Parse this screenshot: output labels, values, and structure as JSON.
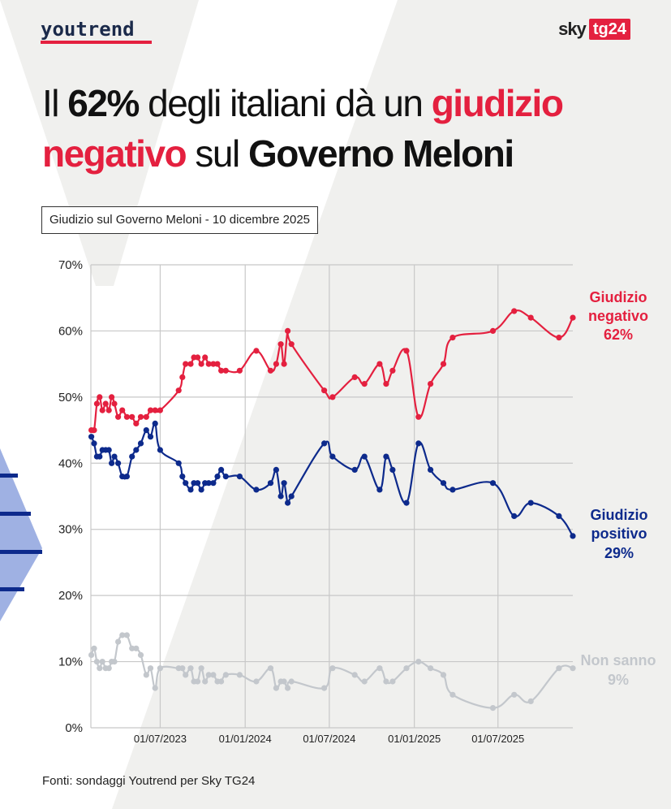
{
  "branding": {
    "left_logo": "youtrend",
    "right_logo_sky": "sky",
    "right_logo_tg": "tg24"
  },
  "headline": {
    "part1": "Il ",
    "part2": "62%",
    "part3": " degli italiani dà un ",
    "part4": "giudizio",
    "part5": "negativo",
    "part6": " sul ",
    "part7": "Governo Meloni"
  },
  "subtitle": "Giudizio sul Governo Meloni - 10 dicembre 2025",
  "source": "Fonti: sondaggi Youtrend per Sky TG24",
  "colors": {
    "negative": "#e4203f",
    "positive": "#0d2a8c",
    "dont_know": "#c3c7cc",
    "background_shape": "#f0f0ee",
    "decor_blue": "#9fb1e3"
  },
  "chart_data": {
    "type": "line",
    "title": "Giudizio sul Governo Meloni - 10 dicembre 2025",
    "xlabel": "",
    "ylabel": "",
    "x_ticks": [
      "01/07/2023",
      "01/01/2024",
      "01/07/2024",
      "01/01/2025",
      "01/07/2025"
    ],
    "y_ticks": [
      "0%",
      "10%",
      "20%",
      "30%",
      "40%",
      "50%",
      "60%",
      "70%"
    ],
    "ylim": [
      0,
      70
    ],
    "xlim": [
      "2023-02-01",
      "2025-12-10"
    ],
    "grid": true,
    "series": [
      {
        "name": "Giudizio negativo",
        "end_label_line1": "Giudizio",
        "end_label_line2": "negativo",
        "end_value_label": "62%",
        "color": "#e4203f",
        "points": [
          [
            "2023-02-02",
            45
          ],
          [
            "2023-02-08",
            45
          ],
          [
            "2023-02-14",
            49
          ],
          [
            "2023-02-20",
            50
          ],
          [
            "2023-02-26",
            48
          ],
          [
            "2023-03-05",
            49
          ],
          [
            "2023-03-12",
            48
          ],
          [
            "2023-03-18",
            50
          ],
          [
            "2023-03-24",
            49
          ],
          [
            "2023-04-01",
            47
          ],
          [
            "2023-04-10",
            48
          ],
          [
            "2023-04-20",
            47
          ],
          [
            "2023-05-01",
            47
          ],
          [
            "2023-05-10",
            46
          ],
          [
            "2023-05-20",
            47
          ],
          [
            "2023-06-01",
            47
          ],
          [
            "2023-06-10",
            48
          ],
          [
            "2023-06-20",
            48
          ],
          [
            "2023-07-01",
            48
          ],
          [
            "2023-08-10",
            51
          ],
          [
            "2023-08-18",
            53
          ],
          [
            "2023-08-25",
            55
          ],
          [
            "2023-09-05",
            55
          ],
          [
            "2023-09-12",
            56
          ],
          [
            "2023-09-20",
            56
          ],
          [
            "2023-09-28",
            55
          ],
          [
            "2023-10-06",
            56
          ],
          [
            "2023-10-14",
            55
          ],
          [
            "2023-10-24",
            55
          ],
          [
            "2023-11-02",
            55
          ],
          [
            "2023-11-10",
            54
          ],
          [
            "2023-11-20",
            54
          ],
          [
            "2023-12-20",
            54
          ],
          [
            "2024-01-25",
            57
          ],
          [
            "2024-02-25",
            54
          ],
          [
            "2024-03-08",
            55
          ],
          [
            "2024-03-18",
            58
          ],
          [
            "2024-03-25",
            55
          ],
          [
            "2024-04-02",
            60
          ],
          [
            "2024-04-10",
            58
          ],
          [
            "2024-06-20",
            51
          ],
          [
            "2024-07-08",
            50
          ],
          [
            "2024-08-25",
            53
          ],
          [
            "2024-09-15",
            52
          ],
          [
            "2024-10-18",
            55
          ],
          [
            "2024-11-01",
            52
          ],
          [
            "2024-11-15",
            54
          ],
          [
            "2024-12-15",
            57
          ],
          [
            "2025-01-10",
            47
          ],
          [
            "2025-02-05",
            52
          ],
          [
            "2025-03-05",
            55
          ],
          [
            "2025-03-25",
            59
          ],
          [
            "2025-06-20",
            60
          ],
          [
            "2025-08-05",
            63
          ],
          [
            "2025-09-10",
            62
          ],
          [
            "2025-11-10",
            59
          ],
          [
            "2025-12-10",
            62
          ]
        ]
      },
      {
        "name": "Giudizio positivo",
        "end_label_line1": "Giudizio",
        "end_label_line2": "positivo",
        "end_value_label": "29%",
        "color": "#0d2a8c",
        "points": [
          [
            "2023-02-02",
            44
          ],
          [
            "2023-02-08",
            43
          ],
          [
            "2023-02-14",
            41
          ],
          [
            "2023-02-20",
            41
          ],
          [
            "2023-02-26",
            42
          ],
          [
            "2023-03-05",
            42
          ],
          [
            "2023-03-12",
            42
          ],
          [
            "2023-03-18",
            40
          ],
          [
            "2023-03-24",
            41
          ],
          [
            "2023-04-01",
            40
          ],
          [
            "2023-04-10",
            38
          ],
          [
            "2023-04-20",
            38
          ],
          [
            "2023-05-01",
            41
          ],
          [
            "2023-05-10",
            42
          ],
          [
            "2023-05-20",
            43
          ],
          [
            "2023-06-01",
            45
          ],
          [
            "2023-06-10",
            44
          ],
          [
            "2023-06-20",
            46
          ],
          [
            "2023-07-01",
            42
          ],
          [
            "2023-08-10",
            40
          ],
          [
            "2023-08-18",
            38
          ],
          [
            "2023-08-25",
            37
          ],
          [
            "2023-09-05",
            36
          ],
          [
            "2023-09-12",
            37
          ],
          [
            "2023-09-20",
            37
          ],
          [
            "2023-09-28",
            36
          ],
          [
            "2023-10-06",
            37
          ],
          [
            "2023-10-14",
            37
          ],
          [
            "2023-10-24",
            37
          ],
          [
            "2023-11-02",
            38
          ],
          [
            "2023-11-10",
            39
          ],
          [
            "2023-11-20",
            38
          ],
          [
            "2023-12-20",
            38
          ],
          [
            "2024-01-25",
            36
          ],
          [
            "2024-02-25",
            37
          ],
          [
            "2024-03-08",
            39
          ],
          [
            "2024-03-18",
            35
          ],
          [
            "2024-03-25",
            37
          ],
          [
            "2024-04-02",
            34
          ],
          [
            "2024-04-10",
            35
          ],
          [
            "2024-06-20",
            43
          ],
          [
            "2024-07-08",
            41
          ],
          [
            "2024-08-25",
            39
          ],
          [
            "2024-09-15",
            41
          ],
          [
            "2024-10-18",
            36
          ],
          [
            "2024-11-01",
            41
          ],
          [
            "2024-11-15",
            39
          ],
          [
            "2024-12-15",
            34
          ],
          [
            "2025-01-10",
            43
          ],
          [
            "2025-02-05",
            39
          ],
          [
            "2025-03-05",
            37
          ],
          [
            "2025-03-25",
            36
          ],
          [
            "2025-06-20",
            37
          ],
          [
            "2025-08-05",
            32
          ],
          [
            "2025-09-10",
            34
          ],
          [
            "2025-11-10",
            32
          ],
          [
            "2025-12-10",
            29
          ]
        ]
      },
      {
        "name": "Non sanno",
        "end_label_line1": "Non sanno",
        "end_label_line2": "",
        "end_value_label": "9%",
        "color": "#c3c7cc",
        "points": [
          [
            "2023-02-02",
            11
          ],
          [
            "2023-02-08",
            12
          ],
          [
            "2023-02-14",
            10
          ],
          [
            "2023-02-20",
            9
          ],
          [
            "2023-02-26",
            10
          ],
          [
            "2023-03-05",
            9
          ],
          [
            "2023-03-12",
            9
          ],
          [
            "2023-03-18",
            10
          ],
          [
            "2023-03-24",
            10
          ],
          [
            "2023-04-01",
            13
          ],
          [
            "2023-04-10",
            14
          ],
          [
            "2023-04-20",
            14
          ],
          [
            "2023-05-01",
            12
          ],
          [
            "2023-05-10",
            12
          ],
          [
            "2023-05-20",
            11
          ],
          [
            "2023-06-01",
            8
          ],
          [
            "2023-06-10",
            9
          ],
          [
            "2023-06-20",
            6
          ],
          [
            "2023-07-01",
            9
          ],
          [
            "2023-08-10",
            9
          ],
          [
            "2023-08-18",
            9
          ],
          [
            "2023-08-25",
            8
          ],
          [
            "2023-09-05",
            9
          ],
          [
            "2023-09-12",
            7
          ],
          [
            "2023-09-20",
            7
          ],
          [
            "2023-09-28",
            9
          ],
          [
            "2023-10-06",
            7
          ],
          [
            "2023-10-14",
            8
          ],
          [
            "2023-10-24",
            8
          ],
          [
            "2023-11-02",
            7
          ],
          [
            "2023-11-10",
            7
          ],
          [
            "2023-11-20",
            8
          ],
          [
            "2023-12-20",
            8
          ],
          [
            "2024-01-25",
            7
          ],
          [
            "2024-02-25",
            9
          ],
          [
            "2024-03-08",
            6
          ],
          [
            "2024-03-18",
            7
          ],
          [
            "2024-03-25",
            7
          ],
          [
            "2024-04-02",
            6
          ],
          [
            "2024-04-10",
            7
          ],
          [
            "2024-06-20",
            6
          ],
          [
            "2024-07-08",
            9
          ],
          [
            "2024-08-25",
            8
          ],
          [
            "2024-09-15",
            7
          ],
          [
            "2024-10-18",
            9
          ],
          [
            "2024-11-01",
            7
          ],
          [
            "2024-11-15",
            7
          ],
          [
            "2024-12-15",
            9
          ],
          [
            "2025-01-10",
            10
          ],
          [
            "2025-02-05",
            9
          ],
          [
            "2025-03-05",
            8
          ],
          [
            "2025-03-25",
            5
          ],
          [
            "2025-06-20",
            3
          ],
          [
            "2025-08-05",
            5
          ],
          [
            "2025-09-10",
            4
          ],
          [
            "2025-11-10",
            9
          ],
          [
            "2025-12-10",
            9
          ]
        ]
      }
    ]
  }
}
